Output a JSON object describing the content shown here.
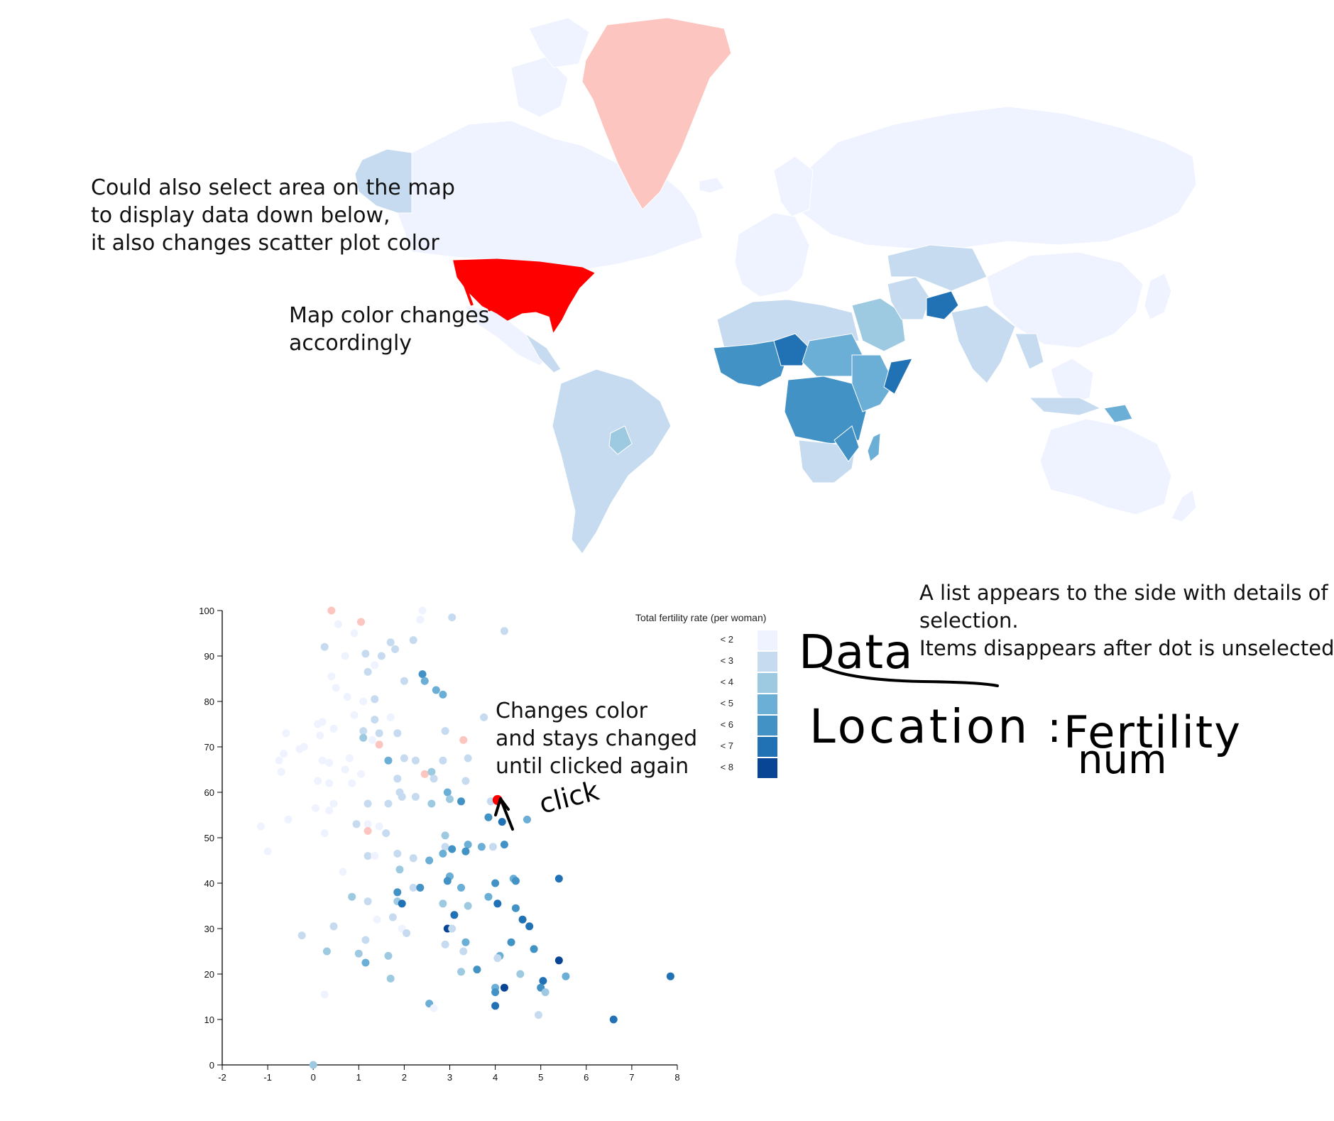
{
  "annotations": {
    "map_select_line1": "Could also select area on the map",
    "map_select_line2": "to display data down below,",
    "map_select_line3": "it also changes scatter plot color",
    "map_color_line1": "Map color changes",
    "map_color_line2": "accordingly",
    "dot_click_line1": "Changes color",
    "dot_click_line2": "and stays changed",
    "dot_click_line3": "until clicked again",
    "list_line1": "A list appears to the side with details of the",
    "list_line2": "selection.",
    "list_line3": "Items disappears after dot is unselected"
  },
  "handwriting": {
    "click": "click",
    "data": "Data",
    "location": "Location",
    "colon": ":",
    "fertility": "Fertility",
    "num": "num"
  },
  "legend": {
    "title": "Total fertility rate (per woman)",
    "items": [
      {
        "label": "< 2",
        "color": "#eff3ff"
      },
      {
        "label": "< 3",
        "color": "#c6dbef"
      },
      {
        "label": "< 4",
        "color": "#9ecae1"
      },
      {
        "label": "< 5",
        "color": "#6baed6"
      },
      {
        "label": "< 6",
        "color": "#4292c6"
      },
      {
        "label": "< 7",
        "color": "#2171b5"
      },
      {
        "label": "< 8",
        "color": "#084594"
      }
    ]
  },
  "colors": {
    "selected": "#ff0000",
    "excluded": "#fcc5c0",
    "land_default": "#eff3ff"
  },
  "chart_data": {
    "type": "scatter",
    "xlim": [
      -2,
      8
    ],
    "ylim": [
      0,
      100
    ],
    "xticks": [
      -2,
      -1,
      0,
      1,
      2,
      3,
      4,
      5,
      6,
      7,
      8
    ],
    "yticks": [
      0,
      10,
      20,
      30,
      40,
      50,
      60,
      70,
      80,
      90,
      100
    ],
    "selected_point": {
      "x": 4.05,
      "y": 58.3
    },
    "points": [
      {
        "x": 0.4,
        "y": 100,
        "c": 7
      },
      {
        "x": 1.05,
        "y": 97.5,
        "c": 7
      },
      {
        "x": 0.55,
        "y": 97,
        "c": 0
      },
      {
        "x": 0.9,
        "y": 95,
        "c": 0
      },
      {
        "x": 2.4,
        "y": 100,
        "c": 0
      },
      {
        "x": 2.35,
        "y": 98,
        "c": 0
      },
      {
        "x": 3.05,
        "y": 98.5,
        "c": 1
      },
      {
        "x": 4.2,
        "y": 95.5,
        "c": 1
      },
      {
        "x": 0.25,
        "y": 92,
        "c": 1
      },
      {
        "x": 1.7,
        "y": 93,
        "c": 1
      },
      {
        "x": 1.8,
        "y": 91.5,
        "c": 1
      },
      {
        "x": 2.2,
        "y": 93.5,
        "c": 1
      },
      {
        "x": 0.7,
        "y": 90,
        "c": 0
      },
      {
        "x": 1.15,
        "y": 90.5,
        "c": 1
      },
      {
        "x": 1.5,
        "y": 90,
        "c": 1
      },
      {
        "x": 1.35,
        "y": 88,
        "c": 0
      },
      {
        "x": 1.2,
        "y": 86.5,
        "c": 1
      },
      {
        "x": 0.4,
        "y": 85.5,
        "c": 0
      },
      {
        "x": 0.5,
        "y": 83,
        "c": 0
      },
      {
        "x": 2.0,
        "y": 84.5,
        "c": 1
      },
      {
        "x": 2.4,
        "y": 86,
        "c": 4
      },
      {
        "x": 2.45,
        "y": 84.5,
        "c": 3
      },
      {
        "x": 2.7,
        "y": 82.5,
        "c": 3
      },
      {
        "x": 2.85,
        "y": 81.5,
        "c": 3
      },
      {
        "x": 0.75,
        "y": 81,
        "c": 0
      },
      {
        "x": 1.1,
        "y": 80,
        "c": 0
      },
      {
        "x": 1.35,
        "y": 80.5,
        "c": 1
      },
      {
        "x": 0.9,
        "y": 77,
        "c": 0
      },
      {
        "x": 1.35,
        "y": 76,
        "c": 1
      },
      {
        "x": 1.7,
        "y": 76.5,
        "c": 0
      },
      {
        "x": 0.1,
        "y": 75,
        "c": 0
      },
      {
        "x": 0.2,
        "y": 75.5,
        "c": 0
      },
      {
        "x": 0.45,
        "y": 74,
        "c": 0
      },
      {
        "x": 1.1,
        "y": 73.5,
        "c": 1
      },
      {
        "x": 1.45,
        "y": 73,
        "c": 1
      },
      {
        "x": 1.85,
        "y": 73,
        "c": 1
      },
      {
        "x": 2.9,
        "y": 73.5,
        "c": 1
      },
      {
        "x": -0.6,
        "y": 73,
        "c": 0
      },
      {
        "x": 0.15,
        "y": 72.5,
        "c": 0
      },
      {
        "x": 1.1,
        "y": 72,
        "c": 2
      },
      {
        "x": 1.3,
        "y": 71.5,
        "c": 0
      },
      {
        "x": 1.45,
        "y": 70.5,
        "c": 7
      },
      {
        "x": 3.3,
        "y": 71.5,
        "c": 7
      },
      {
        "x": 3.75,
        "y": 76.5,
        "c": 1
      },
      {
        "x": -0.2,
        "y": 70,
        "c": 0
      },
      {
        "x": -0.3,
        "y": 69.5,
        "c": 0
      },
      {
        "x": -0.65,
        "y": 68.5,
        "c": 0
      },
      {
        "x": -0.75,
        "y": 67,
        "c": 0
      },
      {
        "x": 0.2,
        "y": 67,
        "c": 0
      },
      {
        "x": 0.35,
        "y": 66.5,
        "c": 0
      },
      {
        "x": 0.8,
        "y": 67.5,
        "c": 0
      },
      {
        "x": 1.65,
        "y": 67,
        "c": 3
      },
      {
        "x": 2.0,
        "y": 67.5,
        "c": 1
      },
      {
        "x": 2.25,
        "y": 67,
        "c": 1
      },
      {
        "x": 2.85,
        "y": 67,
        "c": 1
      },
      {
        "x": 3.4,
        "y": 67.5,
        "c": 1
      },
      {
        "x": -0.7,
        "y": 64.5,
        "c": 0
      },
      {
        "x": 0.7,
        "y": 65,
        "c": 0
      },
      {
        "x": 1.05,
        "y": 64,
        "c": 0
      },
      {
        "x": 2.45,
        "y": 64,
        "c": 7
      },
      {
        "x": 2.6,
        "y": 64.5,
        "c": 2
      },
      {
        "x": 1.85,
        "y": 63,
        "c": 1
      },
      {
        "x": 2.65,
        "y": 63,
        "c": 1
      },
      {
        "x": 3.35,
        "y": 62.5,
        "c": 1
      },
      {
        "x": 0.1,
        "y": 62.5,
        "c": 0
      },
      {
        "x": 0.35,
        "y": 62,
        "c": 0
      },
      {
        "x": 0.85,
        "y": 62,
        "c": 0
      },
      {
        "x": 2.95,
        "y": 60,
        "c": 3
      },
      {
        "x": 1.9,
        "y": 60,
        "c": 1
      },
      {
        "x": 1.95,
        "y": 59,
        "c": 1
      },
      {
        "x": 2.25,
        "y": 59,
        "c": 1
      },
      {
        "x": 3.0,
        "y": 58.5,
        "c": 2
      },
      {
        "x": 3.25,
        "y": 58,
        "c": 4
      },
      {
        "x": 3.9,
        "y": 58,
        "c": 1
      },
      {
        "x": 2.6,
        "y": 57.5,
        "c": 2
      },
      {
        "x": 1.2,
        "y": 57.5,
        "c": 1
      },
      {
        "x": 0.45,
        "y": 57.5,
        "c": 0
      },
      {
        "x": 0.05,
        "y": 56.5,
        "c": 0
      },
      {
        "x": 0.35,
        "y": 56,
        "c": 0
      },
      {
        "x": 1.65,
        "y": 57.5,
        "c": 1
      },
      {
        "x": 3.85,
        "y": 54.5,
        "c": 4
      },
      {
        "x": 4.15,
        "y": 53.5,
        "c": 5
      },
      {
        "x": 4.7,
        "y": 54,
        "c": 3
      },
      {
        "x": -1.15,
        "y": 52.5,
        "c": 0
      },
      {
        "x": -0.55,
        "y": 54,
        "c": 0
      },
      {
        "x": 0.95,
        "y": 53,
        "c": 1
      },
      {
        "x": 1.2,
        "y": 53,
        "c": 0
      },
      {
        "x": 1.45,
        "y": 52.5,
        "c": 0
      },
      {
        "x": 1.2,
        "y": 51.5,
        "c": 7
      },
      {
        "x": 1.6,
        "y": 51,
        "c": 1
      },
      {
        "x": 0.25,
        "y": 51,
        "c": 0
      },
      {
        "x": 2.9,
        "y": 50.5,
        "c": 2
      },
      {
        "x": 2.9,
        "y": 48,
        "c": 1
      },
      {
        "x": 3.4,
        "y": 48.5,
        "c": 3
      },
      {
        "x": 3.05,
        "y": 47.5,
        "c": 4
      },
      {
        "x": 3.7,
        "y": 48,
        "c": 3
      },
      {
        "x": 3.95,
        "y": 48,
        "c": 1
      },
      {
        "x": 4.2,
        "y": 48.5,
        "c": 4
      },
      {
        "x": 3.35,
        "y": 47,
        "c": 4
      },
      {
        "x": 2.85,
        "y": 46.5,
        "c": 3
      },
      {
        "x": -1.0,
        "y": 47,
        "c": 0
      },
      {
        "x": 1.2,
        "y": 46,
        "c": 1
      },
      {
        "x": 1.35,
        "y": 46,
        "c": 0
      },
      {
        "x": 1.85,
        "y": 46.5,
        "c": 1
      },
      {
        "x": 2.2,
        "y": 45.5,
        "c": 1
      },
      {
        "x": 2.55,
        "y": 45,
        "c": 3
      },
      {
        "x": 1.9,
        "y": 43,
        "c": 2
      },
      {
        "x": 0.65,
        "y": 42.5,
        "c": 0
      },
      {
        "x": 3.0,
        "y": 41.5,
        "c": 3
      },
      {
        "x": 2.95,
        "y": 40.5,
        "c": 4
      },
      {
        "x": 4.0,
        "y": 40,
        "c": 4
      },
      {
        "x": 4.4,
        "y": 41,
        "c": 3
      },
      {
        "x": 4.45,
        "y": 40.5,
        "c": 4
      },
      {
        "x": 5.4,
        "y": 41,
        "c": 5
      },
      {
        "x": 2.2,
        "y": 39,
        "c": 1
      },
      {
        "x": 2.35,
        "y": 39,
        "c": 4
      },
      {
        "x": 3.25,
        "y": 39,
        "c": 3
      },
      {
        "x": 1.85,
        "y": 38,
        "c": 4
      },
      {
        "x": 3.85,
        "y": 37,
        "c": 3
      },
      {
        "x": 0.85,
        "y": 37,
        "c": 2
      },
      {
        "x": 1.2,
        "y": 36,
        "c": 1
      },
      {
        "x": 1.85,
        "y": 36,
        "c": 2
      },
      {
        "x": 1.95,
        "y": 35.5,
        "c": 5
      },
      {
        "x": 2.85,
        "y": 35.5,
        "c": 2
      },
      {
        "x": 3.4,
        "y": 35,
        "c": 2
      },
      {
        "x": 4.05,
        "y": 35.5,
        "c": 5
      },
      {
        "x": 4.45,
        "y": 34.5,
        "c": 4
      },
      {
        "x": 1.75,
        "y": 32.5,
        "c": 1
      },
      {
        "x": 1.4,
        "y": 32,
        "c": 0
      },
      {
        "x": 3.1,
        "y": 33,
        "c": 5
      },
      {
        "x": 4.6,
        "y": 32,
        "c": 5
      },
      {
        "x": 4.75,
        "y": 30.5,
        "c": 5
      },
      {
        "x": 0.45,
        "y": 30.5,
        "c": 1
      },
      {
        "x": 1.95,
        "y": 30,
        "c": 0
      },
      {
        "x": 2.95,
        "y": 30,
        "c": 6
      },
      {
        "x": 3.05,
        "y": 30,
        "c": 1
      },
      {
        "x": 2.05,
        "y": 29,
        "c": 1
      },
      {
        "x": -0.25,
        "y": 28.5,
        "c": 1
      },
      {
        "x": 1.15,
        "y": 27.5,
        "c": 1
      },
      {
        "x": 3.35,
        "y": 27,
        "c": 3
      },
      {
        "x": 4.35,
        "y": 27,
        "c": 4
      },
      {
        "x": 2.9,
        "y": 26.5,
        "c": 1
      },
      {
        "x": 3.3,
        "y": 25,
        "c": 1
      },
      {
        "x": 4.85,
        "y": 25.5,
        "c": 4
      },
      {
        "x": 0.3,
        "y": 25,
        "c": 2
      },
      {
        "x": 1.0,
        "y": 24.5,
        "c": 2
      },
      {
        "x": 1.65,
        "y": 24,
        "c": 2
      },
      {
        "x": 4.1,
        "y": 24,
        "c": 3
      },
      {
        "x": 4.05,
        "y": 23.5,
        "c": 1
      },
      {
        "x": 5.4,
        "y": 23,
        "c": 6
      },
      {
        "x": 1.15,
        "y": 22.5,
        "c": 3
      },
      {
        "x": 3.6,
        "y": 21,
        "c": 4
      },
      {
        "x": 3.25,
        "y": 20.5,
        "c": 2
      },
      {
        "x": 4.55,
        "y": 20,
        "c": 2
      },
      {
        "x": 5.55,
        "y": 19.5,
        "c": 3
      },
      {
        "x": 1.7,
        "y": 19,
        "c": 2
      },
      {
        "x": 5.05,
        "y": 18.5,
        "c": 5
      },
      {
        "x": 4.0,
        "y": 17,
        "c": 3
      },
      {
        "x": 4.2,
        "y": 17,
        "c": 6
      },
      {
        "x": 5.0,
        "y": 17,
        "c": 4
      },
      {
        "x": 4.0,
        "y": 16,
        "c": 4
      },
      {
        "x": 5.1,
        "y": 16,
        "c": 2
      },
      {
        "x": 0.25,
        "y": 15.5,
        "c": 0
      },
      {
        "x": 2.55,
        "y": 13.5,
        "c": 3
      },
      {
        "x": 2.65,
        "y": 12.5,
        "c": 0
      },
      {
        "x": 4.0,
        "y": 13,
        "c": 5
      },
      {
        "x": 4.95,
        "y": 11,
        "c": 1
      },
      {
        "x": 6.6,
        "y": 10,
        "c": 5
      },
      {
        "x": 7.85,
        "y": 19.5,
        "c": 5
      },
      {
        "x": 0.0,
        "y": 0,
        "c": 2
      }
    ]
  }
}
